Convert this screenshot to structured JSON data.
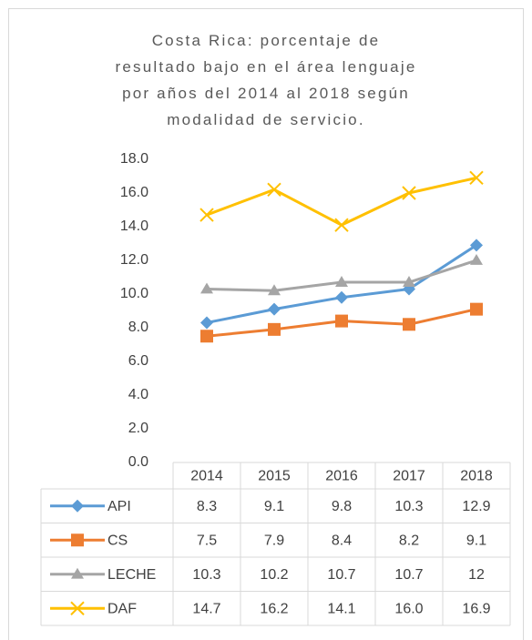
{
  "chart_data": {
    "type": "line",
    "title": "Costa Rica: porcentaje de\nresultado bajo en el área lenguaje\npor años del 2014  al 2018 según\nmodalidad de servicio.",
    "categories": [
      "2014",
      "2015",
      "2016",
      "2017",
      "2018"
    ],
    "series": [
      {
        "name": "API",
        "color": "#5b9bd5",
        "marker": "diamond",
        "values": [
          8.3,
          9.1,
          9.8,
          10.3,
          12.9
        ]
      },
      {
        "name": "CS",
        "color": "#ed7d31",
        "marker": "square",
        "values": [
          7.5,
          7.9,
          8.4,
          8.2,
          9.1
        ]
      },
      {
        "name": "LECHE",
        "color": "#a5a5a5",
        "marker": "triangle",
        "values": [
          10.3,
          10.2,
          10.7,
          10.7,
          12
        ]
      },
      {
        "name": "DAF",
        "color": "#ffc000",
        "marker": "x",
        "values": [
          14.7,
          16.2,
          14.1,
          16,
          16.9
        ],
        "value_labels": [
          "14.7",
          "16.2",
          "14.1",
          "16.0",
          "16.9"
        ]
      }
    ],
    "ylim": [
      0,
      18
    ],
    "yticks": [
      {
        "value": 0,
        "label": "0.0"
      },
      {
        "value": 2,
        "label": "2.0"
      },
      {
        "value": 4,
        "label": "4.0"
      },
      {
        "value": 6,
        "label": "6.0"
      },
      {
        "value": 8,
        "label": "8.0"
      },
      {
        "value": 10,
        "label": "10.0"
      },
      {
        "value": 12,
        "label": "12.0"
      },
      {
        "value": 14,
        "label": "14.0"
      },
      {
        "value": 16,
        "label": "16.0"
      },
      {
        "value": 18,
        "label": "18.0"
      }
    ],
    "grid": false
  }
}
